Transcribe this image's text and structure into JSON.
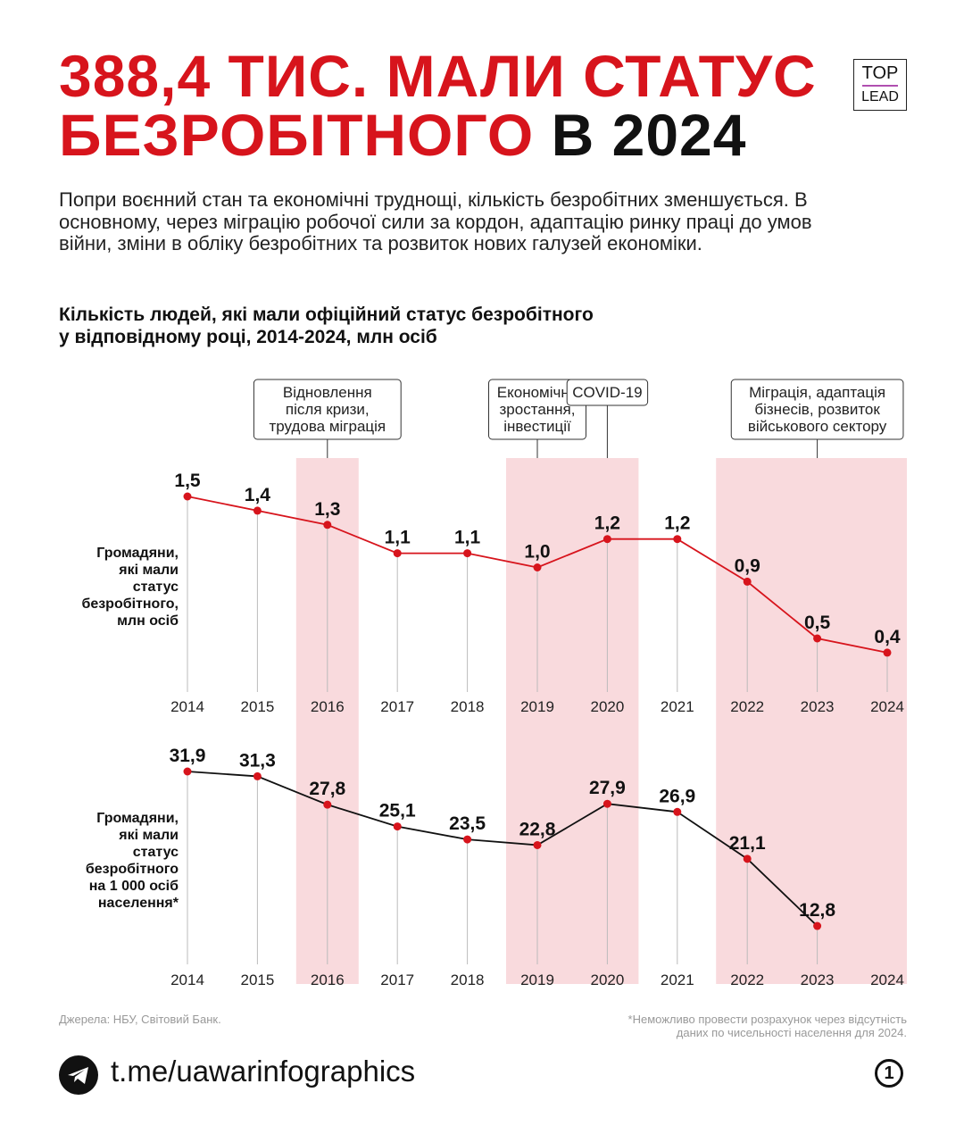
{
  "header": {
    "title_line1": "388,4 ТИС. МАЛИ СТАТУС",
    "title_line2_red": "БЕЗРОБІТНОГО",
    "title_line2_black": "В 2024",
    "logo_top": "TOP",
    "logo_bottom": "LEAD",
    "brand_red": "#d7141c"
  },
  "intro": "Попри воєнний стан та економічні труднощі, кількість безробітних зменшується. В основному, через міграцію робочої сили за кордон, адаптацію ринку праці до умов війни, зміни в обліку безробітних та розвиток нових галузей економіки.",
  "subtitle_line1": "Кількість людей, які мали офіційний статус безробітного",
  "subtitle_line2": "у відповідному році, 2014-2024, млн осіб",
  "chart_data": {
    "type": "line",
    "x": [
      "2014",
      "2015",
      "2016",
      "2017",
      "2018",
      "2019",
      "2020",
      "2021",
      "2022",
      "2023",
      "2024"
    ],
    "highlighted_periods": [
      "2016",
      "2019",
      "2020",
      "2022",
      "2023",
      "2024"
    ],
    "annotations": [
      {
        "x": "2016",
        "lines": [
          "Відновлення",
          "після кризи,",
          "трудова міграція"
        ]
      },
      {
        "x": "2019",
        "lines": [
          "Економічне",
          "зростання,",
          "інвестиції"
        ]
      },
      {
        "x": "2020",
        "lines": [
          "COVID-19"
        ]
      },
      {
        "x": "2023",
        "lines": [
          "Міграція, адаптація",
          "бізнесів, розвиток",
          "військового сектору"
        ]
      }
    ],
    "series": [
      {
        "name": "Громадяни, які мали статус безробітного, млн осіб",
        "label_lines": [
          "Громадяни,",
          "які мали",
          "статус",
          "безробітного,",
          "млн осіб"
        ],
        "color": "#d7141c",
        "values": [
          1.5,
          1.4,
          1.3,
          1.1,
          1.1,
          1.0,
          1.2,
          1.2,
          0.9,
          0.5,
          0.4
        ],
        "labels": [
          "1,5",
          "1,4",
          "1,3",
          "1,1",
          "1,1",
          "1,0",
          "1,2",
          "1,2",
          "0,9",
          "0,5",
          "0,4"
        ]
      },
      {
        "name": "Громадяни, які мали статус безробітного на 1 000 осіб населення*",
        "label_lines": [
          "Громадяни,",
          "які мали",
          "статус",
          "безробітного",
          "на 1 000 осіб",
          "населення*"
        ],
        "color": "#111111",
        "values": [
          31.9,
          31.3,
          27.8,
          25.1,
          23.5,
          22.8,
          27.9,
          26.9,
          21.1,
          12.8,
          null
        ],
        "labels": [
          "31,9",
          "31,3",
          "27,8",
          "25,1",
          "23,5",
          "22,8",
          "27,9",
          "26,9",
          "21,1",
          "12,8",
          ""
        ]
      }
    ]
  },
  "footer": {
    "sources": "Джерела: НБУ, Світовий Банк.",
    "note_line1": "*Неможливо провести розрахунок через відсутність",
    "note_line2": "даних по чисельності населення для 2024.",
    "link": "t.me/uawarinfographics",
    "page": "1"
  }
}
